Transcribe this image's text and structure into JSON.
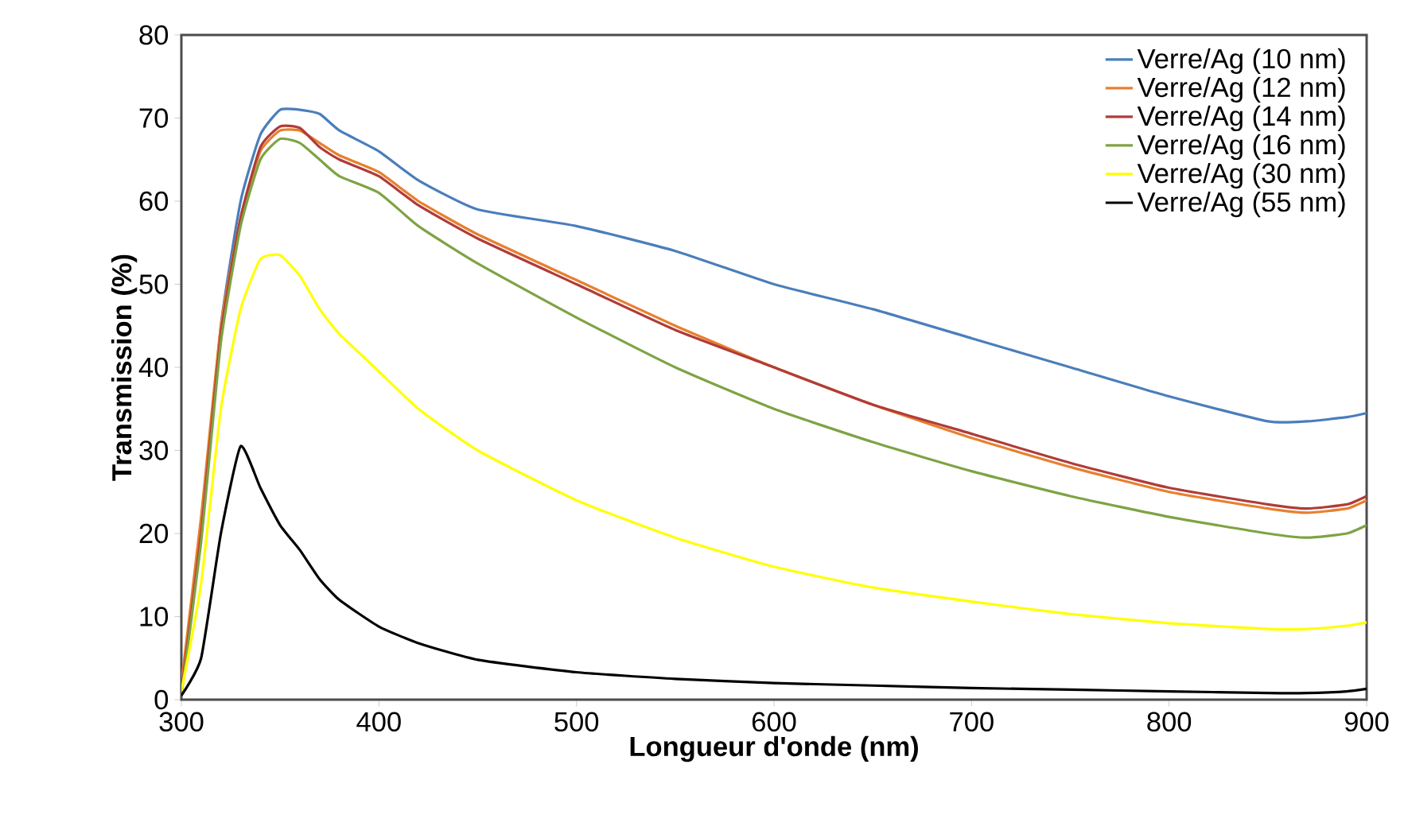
{
  "chart_data": {
    "type": "line",
    "xlabel": "Longueur d'onde (nm)",
    "ylabel": "Transmission (%)",
    "xlim": [
      300,
      900
    ],
    "ylim": [
      0,
      80
    ],
    "xticks": [
      300,
      400,
      500,
      600,
      700,
      800,
      900
    ],
    "yticks": [
      0,
      10,
      20,
      30,
      40,
      50,
      60,
      70,
      80
    ],
    "grid": false,
    "legend": "top right",
    "marker": "none",
    "line_style": "solid",
    "x": [
      300,
      310,
      320,
      330,
      340,
      350,
      360,
      370,
      380,
      400,
      420,
      450,
      500,
      550,
      600,
      650,
      700,
      750,
      800,
      850,
      870,
      890,
      900
    ],
    "series": [
      {
        "name": "Verre/Ag (10 nm)",
        "color": "#4a7ebb",
        "values": [
          1,
          20,
          45,
          60,
          68,
          71,
          71,
          70.5,
          68.5,
          66,
          62.5,
          59,
          57,
          54,
          50,
          47,
          43.5,
          40,
          36.5,
          33.5,
          33.5,
          34,
          34.5
        ]
      },
      {
        "name": "Verre/Ag (12 nm)",
        "color": "#e87f2e",
        "values": [
          2,
          22,
          45,
          58,
          66,
          68.5,
          68.5,
          67,
          65.5,
          63.5,
          60,
          56,
          50.5,
          45,
          40,
          35.5,
          31.5,
          28,
          25,
          23,
          22.5,
          23,
          24
        ]
      },
      {
        "name": "Verre/Ag (14 nm)",
        "color": "#b03c38",
        "values": [
          1,
          20,
          44,
          58,
          66.5,
          69,
          68.8,
          66.5,
          65,
          63,
          59.5,
          55.5,
          50,
          44.5,
          40,
          35.5,
          32,
          28.5,
          25.5,
          23.5,
          23,
          23.5,
          24.5
        ]
      },
      {
        "name": "Verre/Ag (16 nm)",
        "color": "#7ea344",
        "values": [
          0.5,
          19,
          43,
          57,
          65,
          67.5,
          67,
          65,
          63,
          61,
          57,
          52.5,
          46,
          40,
          35,
          31,
          27.5,
          24.5,
          22,
          20,
          19.5,
          20,
          21
        ]
      },
      {
        "name": "Verre/Ag (30 nm)",
        "color": "#ffff00",
        "values": [
          1,
          14,
          35,
          47,
          53,
          53.5,
          51,
          47,
          44,
          39.5,
          35,
          30,
          24,
          19.5,
          16,
          13.5,
          11.8,
          10.3,
          9.2,
          8.5,
          8.5,
          8.9,
          9.3
        ]
      },
      {
        "name": "Verre/Ag (55 nm)",
        "color": "#000000",
        "values": [
          0.5,
          5,
          20,
          30.5,
          25.5,
          21,
          18,
          14.5,
          12,
          8.8,
          6.8,
          4.8,
          3.3,
          2.5,
          2,
          1.7,
          1.4,
          1.2,
          1,
          0.8,
          0.8,
          1,
          1.3
        ]
      }
    ]
  }
}
